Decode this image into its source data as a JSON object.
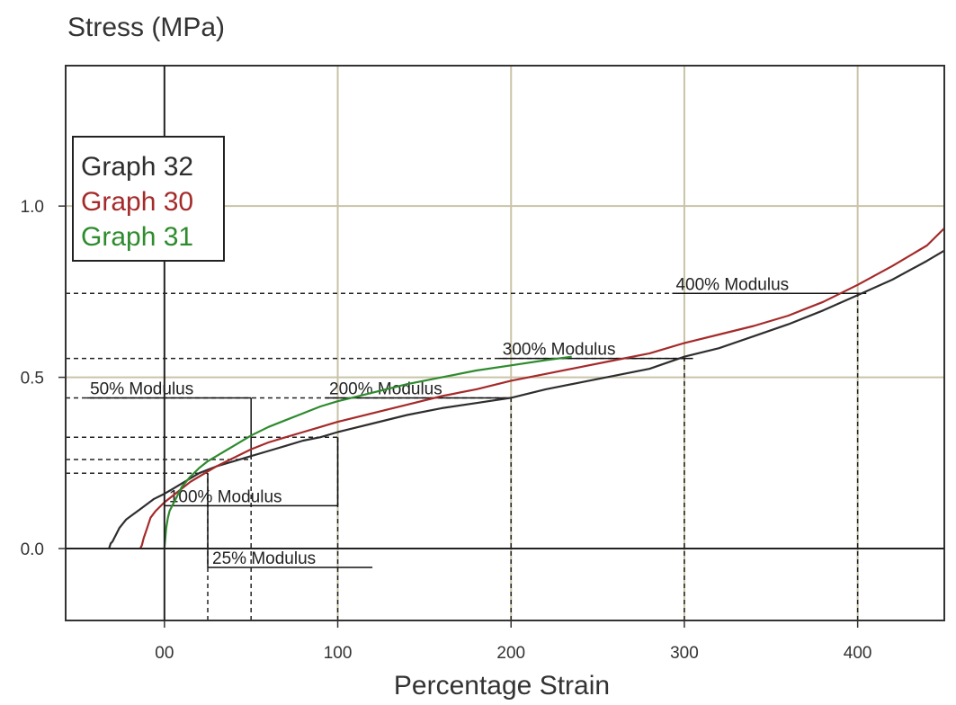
{
  "chart_data": {
    "type": "line",
    "title": "",
    "ylabel": "Stress (MPa)",
    "xlabel": "Percentage Strain",
    "xlim": [
      -57,
      450
    ],
    "ylim": [
      -0.21,
      1.41
    ],
    "x_ticks": [
      0,
      100,
      200,
      300,
      400
    ],
    "x_tick_labels": [
      "00",
      "100",
      "200",
      "300",
      "400"
    ],
    "y_ticks": [
      0.0,
      0.5,
      1.0
    ],
    "y_tick_labels": [
      "0.0",
      "0.5",
      "1.0"
    ],
    "grid": true,
    "legend_position": "top-left",
    "colors": {
      "grid": "#c9c3a8",
      "axis": "#222222",
      "frame": "#333333"
    },
    "series": [
      {
        "name": "Graph 32",
        "color": "#2e2e2e",
        "x": [
          -32,
          -31,
          -30,
          -28,
          -26,
          -22,
          -18,
          -14,
          -10,
          -6,
          -2,
          0,
          5,
          10,
          15,
          20,
          25,
          30,
          40,
          50,
          60,
          70,
          80,
          90,
          100,
          120,
          140,
          160,
          180,
          200,
          220,
          240,
          260,
          280,
          300,
          320,
          340,
          360,
          380,
          400,
          420,
          440,
          450
        ],
        "y": [
          0.0,
          0.015,
          0.02,
          0.04,
          0.06,
          0.085,
          0.1,
          0.115,
          0.13,
          0.145,
          0.155,
          0.16,
          0.175,
          0.19,
          0.205,
          0.22,
          0.23,
          0.24,
          0.255,
          0.27,
          0.285,
          0.3,
          0.315,
          0.325,
          0.34,
          0.365,
          0.39,
          0.41,
          0.425,
          0.44,
          0.465,
          0.485,
          0.505,
          0.525,
          0.56,
          0.585,
          0.62,
          0.655,
          0.695,
          0.74,
          0.785,
          0.84,
          0.87
        ]
      },
      {
        "name": "Graph 30",
        "color": "#a52a2a",
        "x": [
          -14,
          -13,
          -12,
          -10,
          -8,
          -5,
          -2,
          0,
          5,
          10,
          15,
          20,
          25,
          30,
          40,
          50,
          60,
          70,
          80,
          90,
          100,
          120,
          140,
          160,
          180,
          200,
          220,
          240,
          260,
          280,
          300,
          320,
          340,
          360,
          380,
          400,
          420,
          440,
          450
        ],
        "y": [
          0.0,
          0.01,
          0.03,
          0.06,
          0.09,
          0.11,
          0.125,
          0.135,
          0.155,
          0.175,
          0.195,
          0.21,
          0.225,
          0.24,
          0.265,
          0.29,
          0.31,
          0.325,
          0.34,
          0.355,
          0.37,
          0.395,
          0.42,
          0.445,
          0.465,
          0.49,
          0.51,
          0.53,
          0.55,
          0.57,
          0.6,
          0.625,
          0.65,
          0.68,
          0.72,
          0.77,
          0.825,
          0.885,
          0.935
        ]
      },
      {
        "name": "Graph 31",
        "color": "#2e8b2e",
        "x": [
          0,
          0.5,
          1,
          2,
          3,
          5,
          8,
          10,
          15,
          20,
          25,
          30,
          40,
          50,
          60,
          70,
          80,
          90,
          100,
          120,
          140,
          160,
          180,
          200,
          220,
          235
        ],
        "y": [
          0.0,
          0.03,
          0.06,
          0.09,
          0.11,
          0.13,
          0.16,
          0.18,
          0.21,
          0.235,
          0.255,
          0.27,
          0.3,
          0.33,
          0.355,
          0.375,
          0.395,
          0.415,
          0.43,
          0.455,
          0.48,
          0.5,
          0.52,
          0.535,
          0.55,
          0.56
        ]
      }
    ],
    "annotations": [
      {
        "label": "50% Modulus",
        "stress": 0.44,
        "strain_line": 50,
        "box_x": [
          -45,
          50
        ]
      },
      {
        "label": "200% Modulus",
        "stress": 0.44,
        "strain_line": 200,
        "box_x": [
          93,
          200
        ]
      },
      {
        "label": "300% Modulus",
        "stress": 0.555,
        "strain_line": 300,
        "box_x": [
          193,
          305
        ]
      },
      {
        "label": "400% Modulus",
        "stress": 0.745,
        "strain_line": 400,
        "box_x": [
          293,
          405
        ]
      },
      {
        "label": "100% Modulus",
        "stress": 0.125,
        "strain_line": 100,
        "box_x": [
          0,
          100
        ]
      },
      {
        "label": "25% Modulus",
        "stress": -0.055,
        "strain_line": 25,
        "box_x": [
          25,
          120
        ]
      }
    ],
    "reference_stresses": [
      0.22,
      0.26,
      0.325,
      0.44,
      0.555,
      0.745
    ],
    "reference_strains": [
      25,
      50,
      100,
      200,
      300,
      400
    ]
  }
}
